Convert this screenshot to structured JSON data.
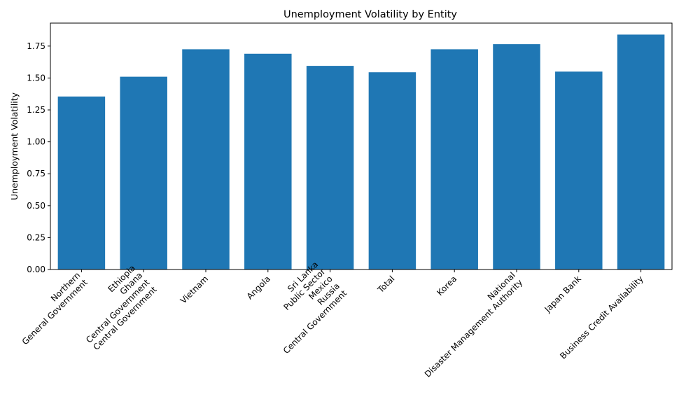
{
  "chart_data": {
    "type": "bar",
    "title": "Unemployment Volatility by Entity",
    "xlabel": "",
    "ylabel": "Unemployment Volatility",
    "ylim": [
      0,
      1.93
    ],
    "yticks": [
      0.0,
      0.25,
      0.5,
      0.75,
      1.0,
      1.25,
      1.5,
      1.75
    ],
    "ytick_labels": [
      "0.00",
      "0.25",
      "0.50",
      "0.75",
      "1.00",
      "1.25",
      "1.50",
      "1.75"
    ],
    "grid": false,
    "bar_color": "#1f77b4",
    "categories": [
      [
        "Northern",
        "General Government"
      ],
      [
        "Ethiopia",
        "Ghana",
        "Central Government",
        "Central Government"
      ],
      [
        "Vietnam"
      ],
      [
        "Angola"
      ],
      [
        "Sri Lanka",
        "Public Sector",
        "Mexico",
        "Russia",
        "Central Government"
      ],
      [
        "Total"
      ],
      [
        "Korea"
      ],
      [
        "National",
        "Disaster Management Authority"
      ],
      [
        "Japan Bank"
      ],
      [
        "Business Credit Availability"
      ]
    ],
    "values": [
      1.355,
      1.51,
      1.725,
      1.69,
      1.595,
      1.545,
      1.725,
      1.765,
      1.55,
      1.84
    ]
  }
}
